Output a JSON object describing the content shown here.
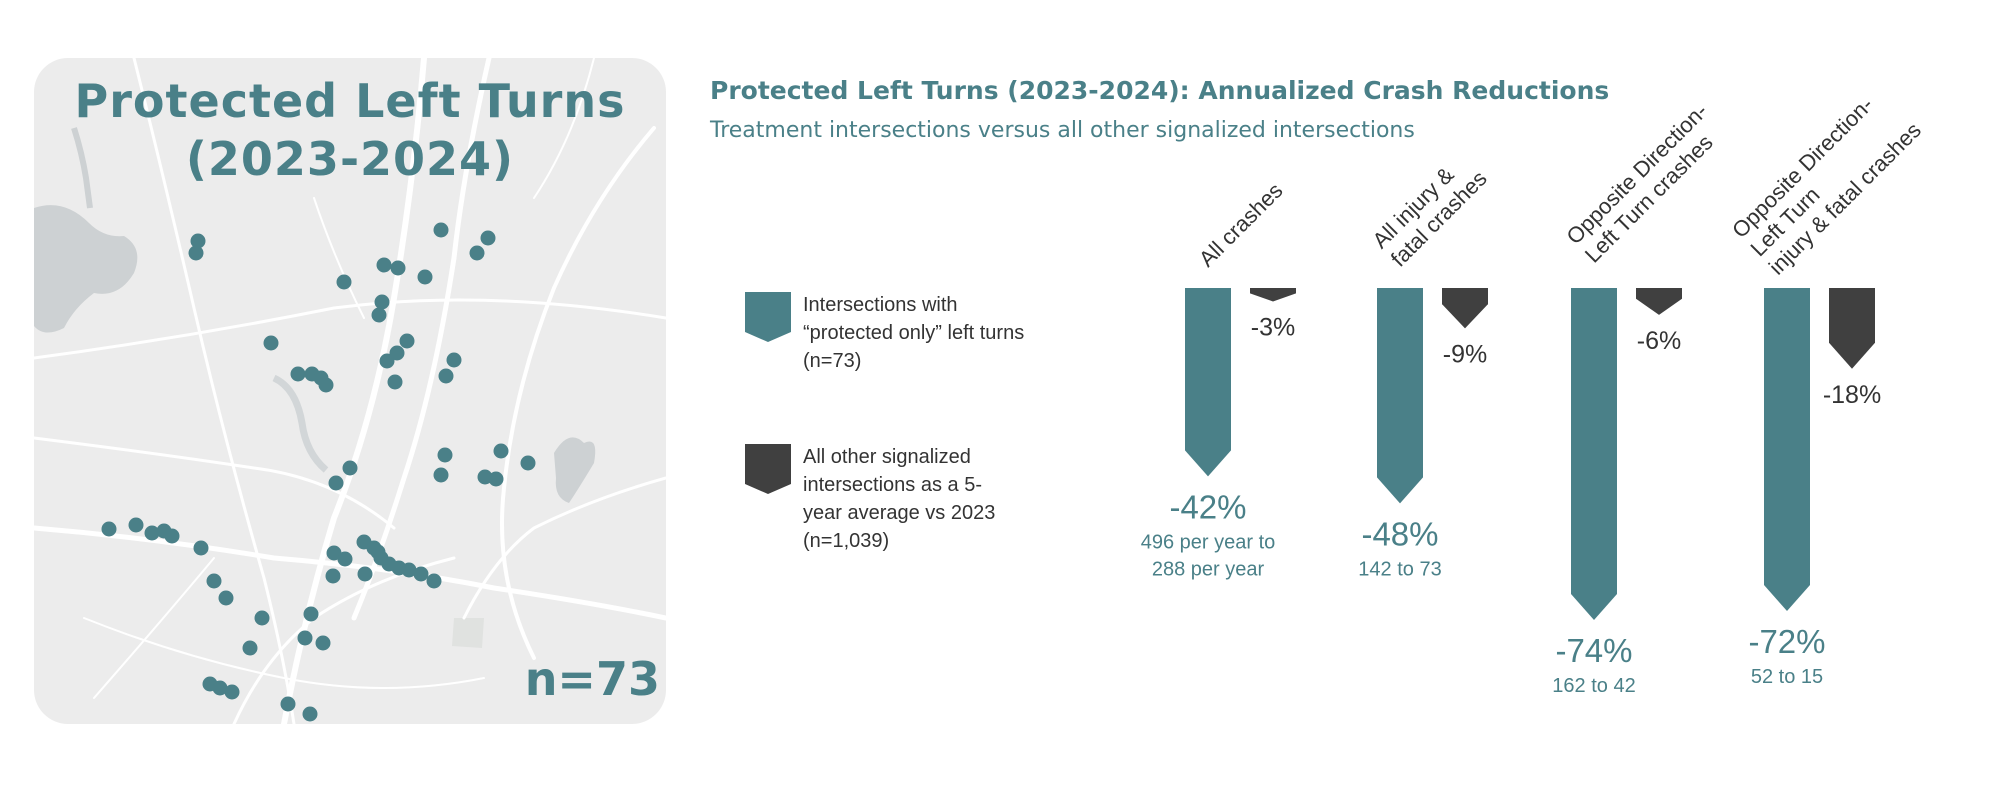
{
  "map": {
    "title_line1": "Protected Left Turns",
    "title_line2": "(2023-2024)",
    "n_label": "n=73",
    "point_color": "#4a8088",
    "background_color": "#ececec"
  },
  "chart_data": {
    "type": "bar",
    "title": "Protected Left Turns (2023-2024): Annualized Crash Reductions",
    "subtitle": "Treatment intersections versus all other signalized intersections",
    "categories": [
      [
        "All crashes"
      ],
      [
        "All injury &",
        "fatal crashes"
      ],
      [
        "Opposite Direction-",
        "Left Turn crashes"
      ],
      [
        "Opposite Direction-",
        "Left Turn",
        "injury & fatal crashes"
      ]
    ],
    "series": [
      {
        "name": "Intersections with “protected only” left turns (n=73)",
        "color": "#4a8088",
        "values": [
          -42,
          -48,
          -74,
          -72
        ],
        "labels": [
          "-42%",
          "-48%",
          "-74%",
          "-72%"
        ],
        "sublabels": [
          [
            "496 per year to",
            "288 per year"
          ],
          [
            "142 to 73"
          ],
          [
            "162 to 42"
          ],
          [
            "52 to 15"
          ]
        ]
      },
      {
        "name": "All other signalized intersections as a 5-year average vs 2023 (n=1,039)",
        "color": "#404040",
        "values": [
          -3,
          -9,
          -6,
          -18
        ],
        "labels": [
          "-3%",
          "-9%",
          "-6%",
          "-18%"
        ]
      }
    ],
    "legend": [
      {
        "lines": [
          "Intersections with",
          "“protected only” left turns",
          "(n=73)"
        ],
        "color": "#4a8088"
      },
      {
        "lines": [
          "All other signalized",
          "intersections as a 5-",
          "year average vs 2023",
          "(n=1,039)"
        ],
        "color": "#404040"
      }
    ],
    "ylim": [
      -80,
      0
    ],
    "legend_position": "left"
  }
}
